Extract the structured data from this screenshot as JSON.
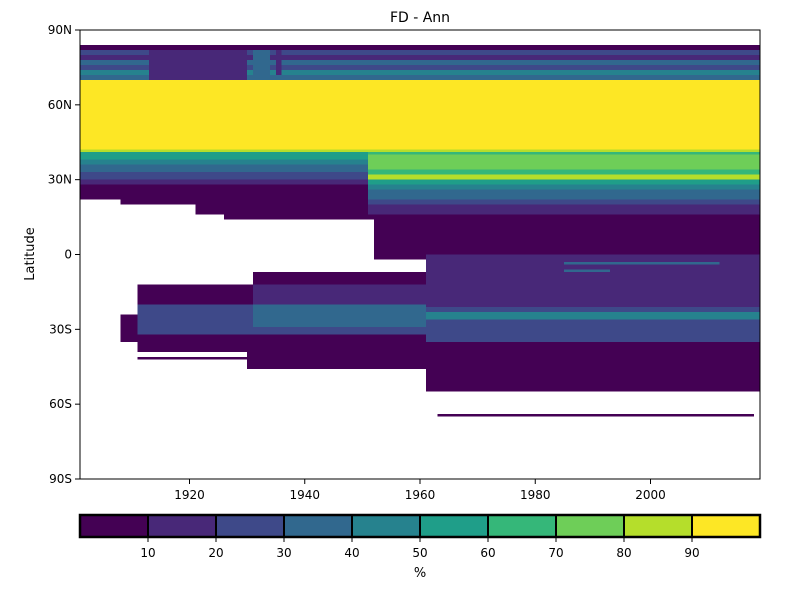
{
  "chart_data": {
    "type": "heatmap",
    "title": "FD - Ann",
    "ylabel": "Latitude",
    "colorbar_label": "%",
    "xlim": [
      1901,
      2019
    ],
    "ylim": [
      -90,
      90
    ],
    "x_ticks": [
      {
        "value": 1920,
        "label": "1920"
      },
      {
        "value": 1940,
        "label": "1940"
      },
      {
        "value": 1960,
        "label": "1960"
      },
      {
        "value": 1980,
        "label": "1980"
      },
      {
        "value": 2000,
        "label": "2000"
      }
    ],
    "y_ticks": [
      {
        "value": 90,
        "label": "90N"
      },
      {
        "value": 60,
        "label": "60N"
      },
      {
        "value": 30,
        "label": "30N"
      },
      {
        "value": 0,
        "label": "0"
      },
      {
        "value": -30,
        "label": "30S"
      },
      {
        "value": -60,
        "label": "60S"
      },
      {
        "value": -90,
        "label": "90S"
      }
    ],
    "colorbar": {
      "bounds": [
        0,
        10,
        20,
        30,
        40,
        50,
        60,
        70,
        80,
        90,
        100
      ],
      "colors": [
        "#440154",
        "#482878",
        "#3e4989",
        "#31688e",
        "#26828e",
        "#1f9e89",
        "#35b779",
        "#6ece58",
        "#b5de2b",
        "#fde725"
      ],
      "ticks": [
        {
          "value": 10,
          "label": "10"
        },
        {
          "value": 20,
          "label": "20"
        },
        {
          "value": 30,
          "label": "30"
        },
        {
          "value": 40,
          "label": "40"
        },
        {
          "value": 50,
          "label": "50"
        },
        {
          "value": 60,
          "label": "60"
        },
        {
          "value": 70,
          "label": "70"
        },
        {
          "value": 80,
          "label": "80"
        },
        {
          "value": 90,
          "label": "90"
        }
      ]
    },
    "cells": [
      {
        "x0": 1901,
        "x1": 2019,
        "y0": 82,
        "y1": 84,
        "v": 5
      },
      {
        "x0": 1901,
        "x1": 2019,
        "y0": 80,
        "y1": 82,
        "v": 25
      },
      {
        "x0": 1901,
        "x1": 2019,
        "y0": 78,
        "y1": 80,
        "v": 15
      },
      {
        "x0": 1901,
        "x1": 2019,
        "y0": 76,
        "y1": 78,
        "v": 35
      },
      {
        "x0": 1901,
        "x1": 2019,
        "y0": 74,
        "y1": 76,
        "v": 25
      },
      {
        "x0": 1901,
        "x1": 2019,
        "y0": 72,
        "y1": 74,
        "v": 45
      },
      {
        "x0": 1901,
        "x1": 2019,
        "y0": 70,
        "y1": 72,
        "v": 35
      },
      {
        "x0": 1913,
        "x1": 1930,
        "y0": 70,
        "y1": 82,
        "v": 15
      },
      {
        "x0": 1931,
        "x1": 1934,
        "y0": 72,
        "y1": 82,
        "v": 35
      },
      {
        "x0": 1935,
        "x1": 1936,
        "y0": 72,
        "y1": 82,
        "v": 15
      },
      {
        "x0": 1901,
        "x1": 2019,
        "y0": 42,
        "y1": 70,
        "v": 95
      },
      {
        "x0": 1901,
        "x1": 2019,
        "y0": 41,
        "y1": 42,
        "v": 85
      },
      {
        "x0": 1901,
        "x1": 1951,
        "y0": 38,
        "y1": 41,
        "v": 55
      },
      {
        "x0": 1901,
        "x1": 1951,
        "y0": 36,
        "y1": 38,
        "v": 45
      },
      {
        "x0": 1901,
        "x1": 1951,
        "y0": 33,
        "y1": 36,
        "v": 35
      },
      {
        "x0": 1901,
        "x1": 1951,
        "y0": 30,
        "y1": 33,
        "v": 25
      },
      {
        "x0": 1901,
        "x1": 1951,
        "y0": 28,
        "y1": 30,
        "v": 15
      },
      {
        "x0": 1901,
        "x1": 1951,
        "y0": 22,
        "y1": 28,
        "v": 5
      },
      {
        "x0": 1908,
        "x1": 1951,
        "y0": 20,
        "y1": 22,
        "v": 5
      },
      {
        "x0": 1921,
        "x1": 1951,
        "y0": 16,
        "y1": 20,
        "v": 5
      },
      {
        "x0": 1926,
        "x1": 1951,
        "y0": 14,
        "y1": 16,
        "v": 5
      },
      {
        "x0": 1951,
        "x1": 2019,
        "y0": 40,
        "y1": 41,
        "v": 65
      },
      {
        "x0": 1951,
        "x1": 2019,
        "y0": 34,
        "y1": 40,
        "v": 75
      },
      {
        "x0": 1951,
        "x1": 2019,
        "y0": 32,
        "y1": 34,
        "v": 65
      },
      {
        "x0": 1951,
        "x1": 2019,
        "y0": 30,
        "y1": 32,
        "v": 85
      },
      {
        "x0": 1951,
        "x1": 2019,
        "y0": 28,
        "y1": 30,
        "v": 55
      },
      {
        "x0": 1951,
        "x1": 2019,
        "y0": 26,
        "y1": 28,
        "v": 45
      },
      {
        "x0": 1951,
        "x1": 2019,
        "y0": 22,
        "y1": 26,
        "v": 35
      },
      {
        "x0": 1951,
        "x1": 2019,
        "y0": 20,
        "y1": 22,
        "v": 25
      },
      {
        "x0": 1951,
        "x1": 2019,
        "y0": 16,
        "y1": 20,
        "v": 15
      },
      {
        "x0": 1951,
        "x1": 2019,
        "y0": 14,
        "y1": 16,
        "v": 5
      },
      {
        "x0": 1952,
        "x1": 2019,
        "y0": 0,
        "y1": 14,
        "v": 5
      },
      {
        "x0": 1952,
        "x1": 1961,
        "y0": -2,
        "y1": 0,
        "v": 5
      },
      {
        "x0": 1961,
        "x1": 2019,
        "y0": -35,
        "y1": 0,
        "v": 15
      },
      {
        "x0": 1931,
        "x1": 1961,
        "y0": -7,
        "y1": -12,
        "v": 5
      },
      {
        "x0": 1911,
        "x1": 1931,
        "y0": -12,
        "y1": -20,
        "v": 5
      },
      {
        "x0": 1931,
        "x1": 1961,
        "y0": -12,
        "y1": -20,
        "v": 15
      },
      {
        "x0": 1911,
        "x1": 1931,
        "y0": -20,
        "y1": -32,
        "v": 25
      },
      {
        "x0": 1931,
        "x1": 1961,
        "y0": -20,
        "y1": -29,
        "v": 35
      },
      {
        "x0": 1930,
        "x1": 1961,
        "y0": -29,
        "y1": -32,
        "v": 25
      },
      {
        "x0": 1908,
        "x1": 1911,
        "y0": -24,
        "y1": -35,
        "v": 5
      },
      {
        "x0": 1911,
        "x1": 1930,
        "y0": -32,
        "y1": -39,
        "v": 5
      },
      {
        "x0": 1930,
        "x1": 1961,
        "y0": -32,
        "y1": -46,
        "v": 5
      },
      {
        "x0": 1961,
        "x1": 2019,
        "y0": -21,
        "y1": -23,
        "v": 25
      },
      {
        "x0": 1961,
        "x1": 2019,
        "y0": -23,
        "y1": -26,
        "v": 45
      },
      {
        "x0": 1961,
        "x1": 2019,
        "y0": -26,
        "y1": -35,
        "v": 25
      },
      {
        "x0": 1961,
        "x1": 2019,
        "y0": -35,
        "y1": -55,
        "v": 5
      },
      {
        "x0": 1911,
        "x1": 1930,
        "y0": -41,
        "y1": -42,
        "v": 5
      },
      {
        "x0": 1963,
        "x1": 2018,
        "y0": -64,
        "y1": -65,
        "v": 5
      },
      {
        "x0": 1985,
        "x1": 2012,
        "y0": -3,
        "y1": -4,
        "v": 35
      },
      {
        "x0": 1985,
        "x1": 1993,
        "y0": -6,
        "y1": -7,
        "v": 35
      }
    ]
  }
}
